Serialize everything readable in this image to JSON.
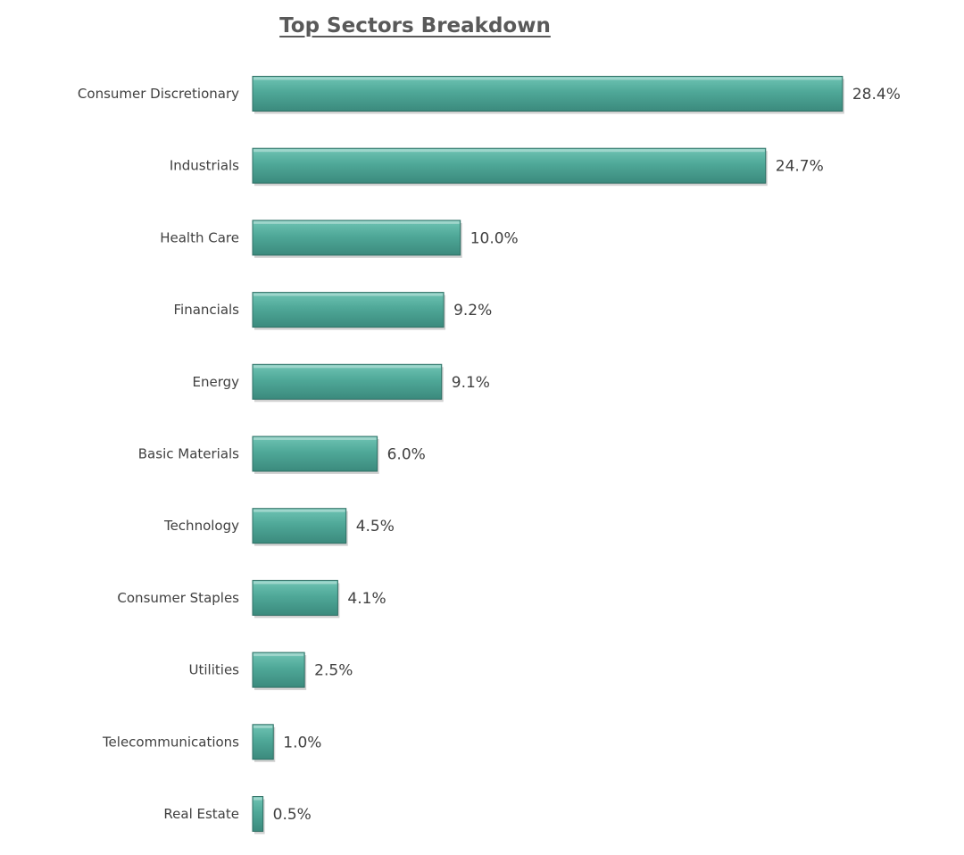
{
  "chart_data": {
    "type": "bar",
    "orientation": "horizontal",
    "title": "Top Sectors Breakdown",
    "xlabel": "",
    "ylabel": "",
    "categories": [
      "Consumer Discretionary",
      "Industrials",
      "Health Care",
      "Financials",
      "Energy",
      "Basic Materials",
      "Technology",
      "Consumer Staples",
      "Utilities",
      "Telecommunications",
      "Real Estate"
    ],
    "values": [
      28.4,
      24.7,
      10.0,
      9.2,
      9.1,
      6.0,
      4.5,
      4.1,
      2.5,
      1.0,
      0.5
    ],
    "value_labels": [
      "28.4%",
      "24.7%",
      "10.0%",
      "9.2%",
      "9.1%",
      "6.0%",
      "4.5%",
      "4.1%",
      "2.5%",
      "1.0%",
      "0.5%"
    ],
    "unit": "%",
    "grid": false,
    "legend": "none",
    "colors": {
      "bar_top": "#6fc4b4",
      "bar_mid": "#4fa898",
      "bar_bottom": "#3b8a7d",
      "bar_edge": "#2f6f64",
      "text": "#404040",
      "title": "#595959"
    }
  }
}
